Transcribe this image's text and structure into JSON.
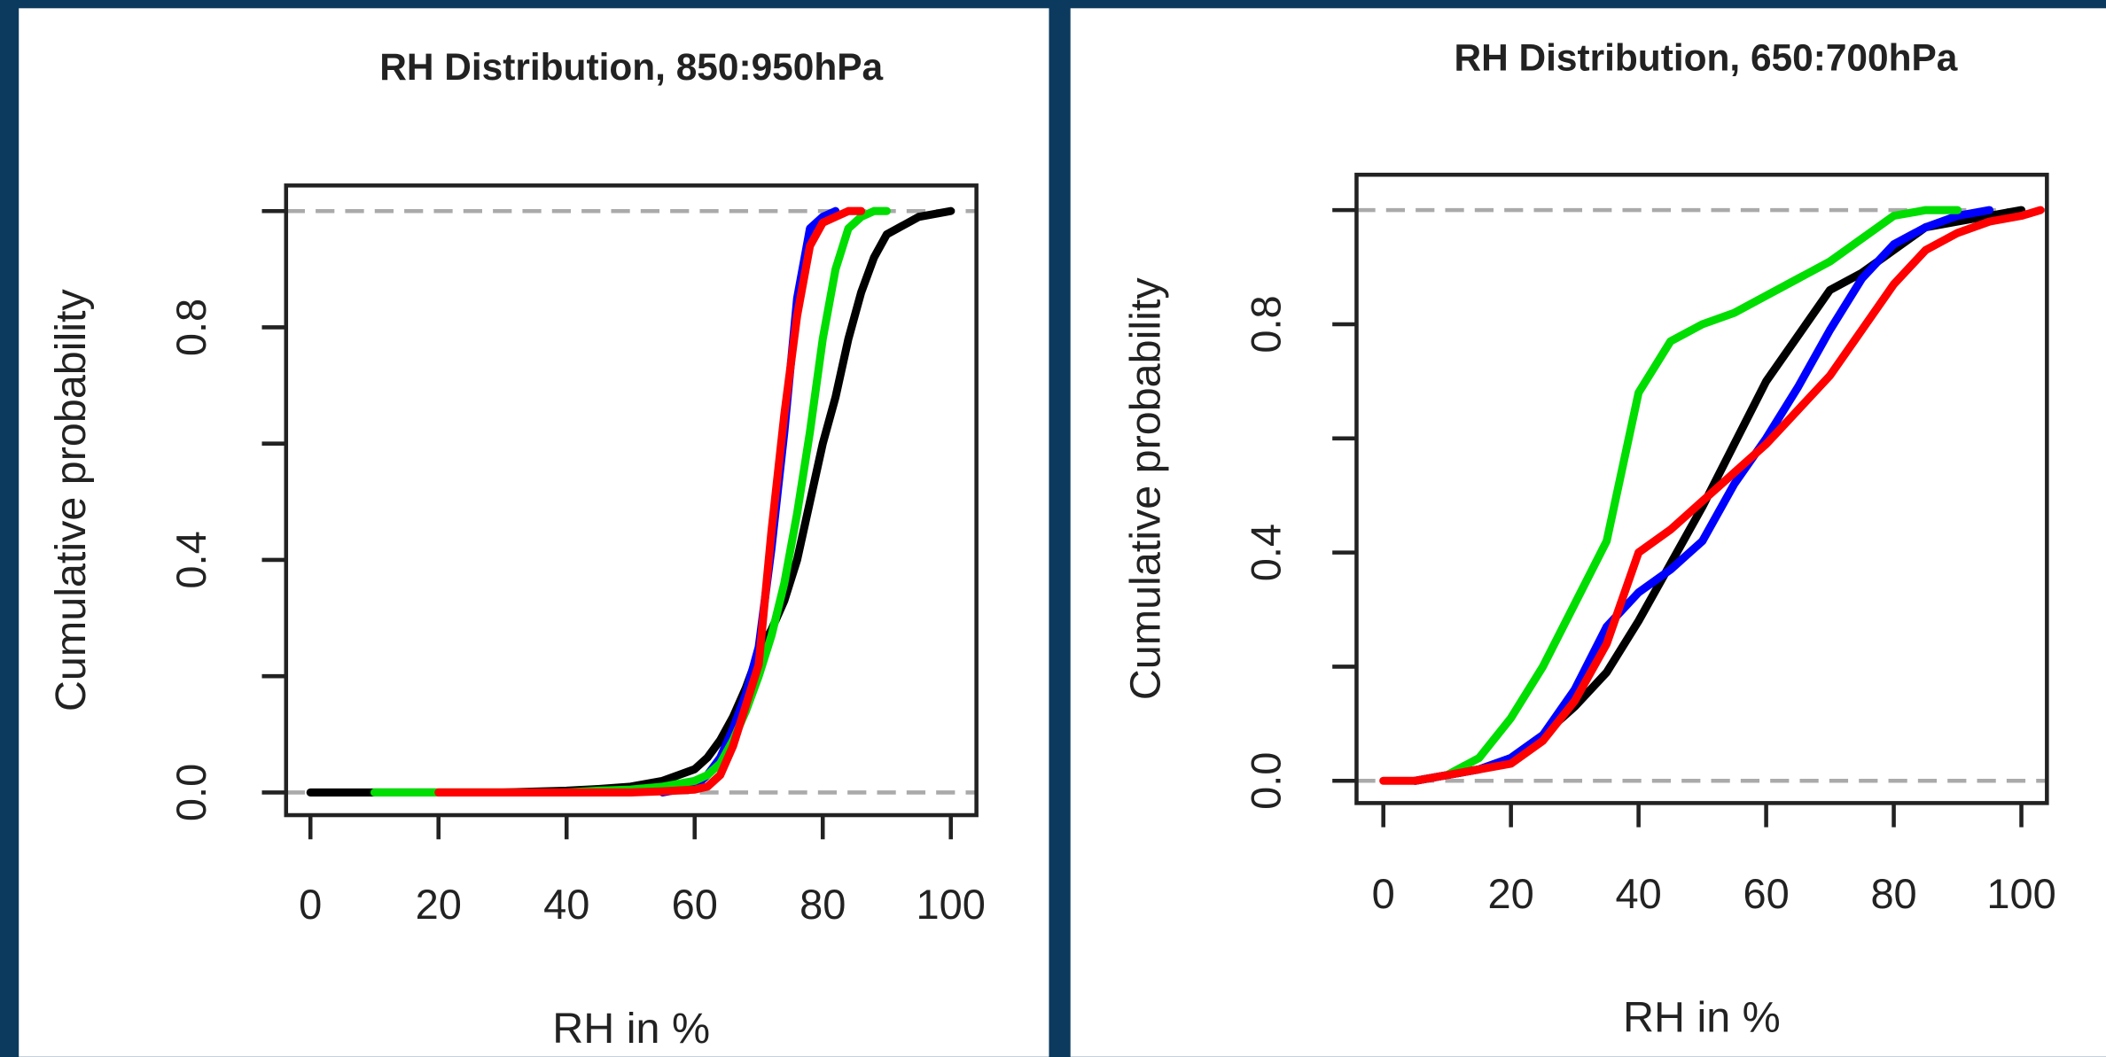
{
  "chart_data": [
    {
      "type": "line",
      "title": "RH Distribution, 850:950hPa",
      "xlabel": "RH in %",
      "ylabel": "Cumulative probability",
      "x": [
        0,
        10,
        20,
        30,
        40,
        45,
        50,
        55,
        60,
        62,
        64,
        66,
        68,
        70,
        72,
        74,
        76,
        78,
        80,
        82,
        84,
        86,
        88,
        90,
        95,
        100
      ],
      "series": [
        {
          "color": "#000000",
          "values": [
            0,
            0,
            0,
            0,
            0.003,
            0.006,
            0.01,
            0.02,
            0.04,
            0.06,
            0.09,
            0.13,
            0.18,
            0.24,
            0.28,
            0.33,
            0.4,
            0.5,
            0.6,
            0.68,
            0.78,
            0.86,
            0.92,
            0.96,
            0.99,
            1
          ]
        },
        {
          "color": "#0000ff",
          "values": [
            null,
            null,
            null,
            null,
            null,
            null,
            null,
            0,
            0.01,
            0.03,
            0.06,
            0.11,
            0.17,
            0.25,
            0.42,
            0.62,
            0.85,
            0.97,
            0.99,
            1,
            null,
            null,
            null,
            null,
            null,
            null
          ]
        },
        {
          "color": "#00dd00",
          "values": [
            null,
            0,
            0,
            0,
            0,
            0.003,
            0.005,
            0.01,
            0.02,
            0.03,
            0.05,
            0.09,
            0.14,
            0.2,
            0.27,
            0.36,
            0.48,
            0.62,
            0.78,
            0.9,
            0.97,
            0.99,
            1,
            1,
            null,
            null
          ]
        },
        {
          "color": "#ff0000",
          "values": [
            null,
            null,
            0,
            0,
            0,
            0,
            0,
            0.002,
            0.005,
            0.01,
            0.03,
            0.08,
            0.15,
            0.22,
            0.45,
            0.65,
            0.82,
            0.94,
            0.98,
            0.99,
            1,
            1,
            null,
            null,
            null,
            null
          ]
        }
      ],
      "xlim": [
        -3.8,
        104
      ],
      "ylim": [
        -0.039,
        1.044
      ],
      "xticks": [
        0,
        20,
        40,
        60,
        80,
        100
      ],
      "yticks": [
        {
          "value": 0,
          "label": "0.0"
        },
        0.4,
        0.8
      ],
      "yminorticks": [
        0.2,
        0.6,
        1
      ],
      "hlines": [
        0,
        1
      ]
    },
    {
      "type": "line",
      "title": "RH Distribution, 650:700hPa",
      "xlabel": "RH in %",
      "ylabel": "Cumulative probability",
      "x": [
        0,
        5,
        10,
        15,
        20,
        25,
        30,
        35,
        40,
        45,
        50,
        55,
        60,
        65,
        70,
        75,
        80,
        85,
        90,
        95,
        100,
        103
      ],
      "series": [
        {
          "color": "#000000",
          "values": [
            null,
            0,
            0.01,
            0.02,
            0.04,
            0.08,
            0.13,
            0.19,
            0.28,
            0.38,
            0.48,
            0.59,
            0.7,
            0.78,
            0.86,
            0.89,
            0.93,
            0.97,
            0.98,
            0.99,
            1,
            null
          ]
        },
        {
          "color": "#0000ff",
          "values": [
            null,
            0,
            0.01,
            0.02,
            0.04,
            0.08,
            0.16,
            0.27,
            0.33,
            0.37,
            0.42,
            0.52,
            0.6,
            0.69,
            0.79,
            0.88,
            0.94,
            0.97,
            0.99,
            1,
            null,
            null
          ]
        },
        {
          "color": "#00dd00",
          "values": [
            null,
            null,
            0.01,
            0.04,
            0.11,
            0.2,
            0.31,
            0.42,
            0.68,
            0.77,
            0.8,
            0.82,
            0.85,
            0.88,
            0.91,
            0.95,
            0.99,
            1,
            1,
            null,
            null,
            null
          ]
        },
        {
          "color": "#ff0000",
          "values": [
            0,
            0,
            0.01,
            0.02,
            0.03,
            0.07,
            0.14,
            0.24,
            0.4,
            0.44,
            0.49,
            0.54,
            0.59,
            0.65,
            0.71,
            0.79,
            0.87,
            0.93,
            0.96,
            0.98,
            0.99,
            1
          ]
        }
      ],
      "xlim": [
        -4.2,
        104
      ],
      "ylim": [
        -0.039,
        1.062
      ],
      "xticks": [
        0,
        20,
        40,
        60,
        80,
        100
      ],
      "yticks": [
        {
          "value": 0,
          "label": "0.0"
        },
        0.4,
        0.8
      ],
      "yminorticks": [
        0.2,
        0.6,
        1
      ],
      "hlines": [
        0,
        1
      ]
    }
  ]
}
